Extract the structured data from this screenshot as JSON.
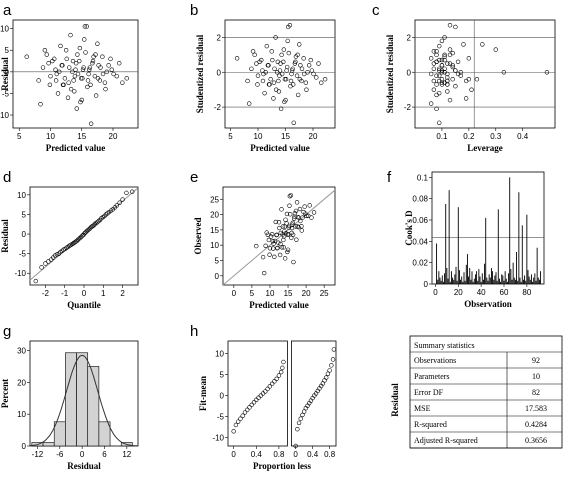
{
  "panel_letters": [
    "a",
    "b",
    "c",
    "d",
    "e",
    "f",
    "g",
    "h"
  ],
  "chart_data": [
    {
      "id": "a",
      "type": "scatter",
      "xlabel": "Predicted value",
      "ylabel": "Residual",
      "xlim": [
        4,
        24
      ],
      "ylim": [
        -13,
        12
      ],
      "xticks": [
        5,
        10,
        15,
        20
      ],
      "yticks": [
        -10,
        -5,
        0,
        5,
        10
      ],
      "hlines": [
        0
      ],
      "x": [
        6.2,
        8.1,
        8.8,
        9.4,
        9.9,
        10.3,
        10.8,
        11.2,
        11.6,
        11.9,
        12.3,
        12.6,
        12.9,
        13.2,
        13.5,
        13.8,
        14.1,
        14.4,
        14.7,
        15.0,
        15.3,
        15.6,
        15.9,
        16.2,
        16.5,
        16.8,
        17.1,
        17.5,
        17.9,
        18.3,
        18.8,
        19.3,
        20.1,
        21.0,
        22.2,
        8.4,
        9.1,
        10.0,
        10.6,
        11.4,
        12.1,
        13.0,
        13.7,
        14.3,
        14.9,
        15.5,
        16.1,
        16.7,
        17.3,
        18.0,
        18.7,
        19.6,
        20.6,
        9.7,
        11.0,
        12.5,
        13.9,
        15.2,
        16.4,
        17.7,
        19.0,
        12.8,
        14.6,
        16.0,
        17.2,
        15.8,
        13.3,
        11.8,
        10.9,
        14.0,
        15.1,
        16.9,
        18.4,
        12.0,
        13.6,
        14.8,
        16.3,
        17.6,
        19.8,
        21.5,
        15.4,
        14.2
      ],
      "y": [
        3.5,
        -2.0,
        1.0,
        4.0,
        -3.0,
        2.5,
        0.5,
        -5.0,
        6.0,
        1.5,
        -1.5,
        3.0,
        -2.5,
        8.5,
        0.0,
        -4.5,
        2.0,
        -0.5,
        5.5,
        -6.5,
        1.0,
        4.5,
        -3.5,
        0.5,
        -12.0,
        2.5,
        -1.0,
        6.5,
        -2.0,
        3.5,
        -4.0,
        1.5,
        -0.5,
        2.0,
        -1.5,
        -7.5,
        5.0,
        -1.0,
        3.0,
        0.0,
        -3.0,
        1.0,
        -2.0,
        4.0,
        -1.5,
        10.5,
        -0.5,
        2.0,
        -5.5,
        1.0,
        -2.5,
        3.0,
        -1.0,
        2.0,
        -0.5,
        5.0,
        -1.0,
        0.5,
        -3.0,
        1.5,
        0.0,
        -6.0,
        2.5,
        -2.0,
        4.0,
        10.5,
        -4.0,
        1.5,
        -2.0,
        0.5,
        -1.5,
        3.5,
        -0.5,
        -3.0,
        2.5,
        -7.0,
        1.0,
        -1.5,
        0.5,
        -2.5,
        7.5,
        -8.5
      ]
    },
    {
      "id": "b",
      "type": "scatter",
      "xlabel": "Predicted value",
      "ylabel": "Studentized residual",
      "xlim": [
        4,
        24
      ],
      "ylim": [
        -3.2,
        3.0
      ],
      "xticks": [
        5,
        10,
        15,
        20
      ],
      "yticks": [
        -2,
        0,
        2
      ],
      "hlines": [
        -2,
        0,
        2
      ],
      "x": [
        6.2,
        8.1,
        8.8,
        9.4,
        9.9,
        10.3,
        10.8,
        11.2,
        11.6,
        11.9,
        12.3,
        12.6,
        12.9,
        13.2,
        13.5,
        13.8,
        14.1,
        14.4,
        14.7,
        15.0,
        15.3,
        15.6,
        15.9,
        16.2,
        16.5,
        16.8,
        17.1,
        17.5,
        17.9,
        18.3,
        18.8,
        19.3,
        20.1,
        21.0,
        22.2,
        8.4,
        9.1,
        10.0,
        10.6,
        11.4,
        12.1,
        13.0,
        13.7,
        14.3,
        14.9,
        15.5,
        16.1,
        16.7,
        17.3,
        18.0,
        18.7,
        19.6,
        20.6,
        9.7,
        11.0,
        12.5,
        13.9,
        15.2,
        16.4,
        17.7,
        19.0,
        12.8,
        14.6,
        16.0,
        17.2,
        15.8,
        13.3,
        11.8,
        10.9,
        14.0,
        15.1,
        16.9,
        18.4,
        12.0,
        13.6,
        14.8,
        16.3,
        17.6,
        19.8,
        21.5,
        15.4,
        14.2
      ],
      "y": [
        0.8,
        -0.5,
        0.2,
        1.0,
        -0.7,
        0.6,
        0.1,
        -1.2,
        1.5,
        0.4,
        -0.4,
        0.7,
        -0.6,
        2.0,
        0.0,
        -1.1,
        0.5,
        -0.1,
        1.3,
        -1.6,
        0.3,
        1.1,
        -0.8,
        0.1,
        -2.9,
        0.6,
        -0.2,
        1.6,
        -0.5,
        0.8,
        -1.0,
        0.4,
        -0.1,
        0.5,
        -0.4,
        -1.8,
        1.2,
        -0.2,
        0.7,
        0.0,
        -0.7,
        0.2,
        -0.5,
        1.0,
        -0.4,
        2.6,
        -0.1,
        0.5,
        -1.3,
        0.2,
        -0.6,
        0.7,
        -0.3,
        0.5,
        -0.1,
        1.2,
        -0.2,
        0.1,
        -0.7,
        0.4,
        0.0,
        -1.5,
        0.6,
        -0.5,
        1.0,
        2.7,
        -1.0,
        0.4,
        -0.5,
        0.1,
        -0.4,
        0.9,
        -0.1,
        -0.7,
        0.6,
        -1.7,
        0.2,
        -0.4,
        0.1,
        -0.6,
        1.8,
        -2.1
      ]
    },
    {
      "id": "c",
      "type": "scatter",
      "xlabel": "Leverage",
      "ylabel": "Studentized residual",
      "xlim": [
        0.0,
        0.52
      ],
      "ylim": [
        -3.2,
        3.0
      ],
      "xticks": [
        0.1,
        0.2,
        0.3,
        0.4
      ],
      "yticks": [
        -2,
        0,
        2
      ],
      "hlines": [
        -2,
        0,
        2
      ],
      "vlines": [
        0.22
      ],
      "x": [
        0.06,
        0.07,
        0.07,
        0.08,
        0.08,
        0.08,
        0.09,
        0.09,
        0.09,
        0.1,
        0.1,
        0.1,
        0.11,
        0.11,
        0.11,
        0.12,
        0.12,
        0.12,
        0.13,
        0.13,
        0.14,
        0.14,
        0.15,
        0.15,
        0.16,
        0.17,
        0.18,
        0.19,
        0.2,
        0.21,
        0.06,
        0.07,
        0.08,
        0.09,
        0.1,
        0.1,
        0.11,
        0.12,
        0.13,
        0.14,
        0.15,
        0.16,
        0.07,
        0.08,
        0.09,
        0.1,
        0.11,
        0.12,
        0.13,
        0.06,
        0.08,
        0.09,
        0.1,
        0.12,
        0.14,
        0.17,
        0.19,
        0.08,
        0.09,
        0.11,
        0.13,
        0.07,
        0.1,
        0.12,
        0.15,
        0.2,
        0.09,
        0.11,
        0.25,
        0.3,
        0.33,
        0.49,
        0.23,
        0.08,
        0.1,
        0.12
      ],
      "y": [
        0.8,
        -0.5,
        0.2,
        1.0,
        -0.7,
        0.6,
        0.1,
        -1.2,
        1.5,
        0.4,
        -0.4,
        0.7,
        -0.6,
        2.0,
        0.0,
        -1.1,
        0.5,
        -0.1,
        1.3,
        -1.6,
        0.3,
        1.1,
        -0.8,
        0.1,
        0.6,
        -0.2,
        1.6,
        -0.5,
        0.8,
        -1.0,
        -1.8,
        1.2,
        -0.2,
        0.7,
        0.0,
        -0.7,
        0.2,
        -0.5,
        1.0,
        -0.4,
        2.6,
        -0.1,
        0.5,
        -1.3,
        0.2,
        -0.6,
        0.7,
        -0.3,
        0.5,
        -0.1,
        1.2,
        -0.2,
        0.1,
        -0.7,
        0.4,
        0.0,
        -1.5,
        0.6,
        -0.5,
        1.0,
        2.7,
        -1.0,
        0.4,
        -0.5,
        0.1,
        -0.4,
        -2.9,
        0.9,
        1.6,
        1.3,
        0.0,
        0.0,
        -0.4,
        -2.1,
        1.8,
        -0.7
      ]
    },
    {
      "id": "d",
      "type": "scatter",
      "xlabel": "Quantile",
      "ylabel": "Residual",
      "xlim": [
        -2.8,
        2.8
      ],
      "ylim": [
        -13,
        12
      ],
      "xticks": [
        -2,
        -1,
        0,
        1,
        2
      ],
      "yticks": [
        -10,
        -5,
        0,
        5,
        10
      ],
      "refline": {
        "slope": 4.2,
        "intercept": 0
      },
      "x": [
        -2.5,
        -2.2,
        -2.0,
        -1.85,
        -1.7,
        -1.6,
        -1.5,
        -1.4,
        -1.3,
        -1.22,
        -1.14,
        -1.06,
        -0.98,
        -0.9,
        -0.83,
        -0.76,
        -0.69,
        -0.62,
        -0.56,
        -0.5,
        -0.44,
        -0.38,
        -0.32,
        -0.26,
        -0.2,
        -0.14,
        -0.08,
        -0.03,
        0.03,
        0.08,
        0.14,
        0.2,
        0.26,
        0.32,
        0.38,
        0.44,
        0.5,
        0.56,
        0.62,
        0.69,
        0.76,
        0.83,
        0.9,
        0.98,
        1.06,
        1.14,
        1.22,
        1.3,
        1.4,
        1.5,
        1.6,
        1.7,
        1.85,
        2.0,
        2.2,
        2.5
      ],
      "y": [
        -12.0,
        -8.5,
        -7.5,
        -7.0,
        -6.5,
        -6.0,
        -5.5,
        -5.2,
        -5.0,
        -4.6,
        -4.3,
        -4.0,
        -3.8,
        -3.5,
        -3.3,
        -3.0,
        -2.8,
        -2.6,
        -2.4,
        -2.2,
        -2.0,
        -1.8,
        -1.5,
        -1.2,
        -1.0,
        -0.7,
        -0.4,
        -0.2,
        0.2,
        0.4,
        0.7,
        1.0,
        1.2,
        1.5,
        1.8,
        2.0,
        2.2,
        2.5,
        2.8,
        3.0,
        3.3,
        3.6,
        4.0,
        4.3,
        4.6,
        5.0,
        5.3,
        5.6,
        6.0,
        6.3,
        6.8,
        7.3,
        8.0,
        8.8,
        10.5,
        10.8
      ]
    },
    {
      "id": "e",
      "type": "scatter",
      "xlabel": "Predicted value",
      "ylabel": "Observed",
      "xlim": [
        -3,
        28
      ],
      "ylim": [
        -3,
        29
      ],
      "xticks": [
        0,
        5,
        10,
        15,
        20,
        25
      ],
      "yticks": [
        0,
        5,
        10,
        15,
        20,
        25
      ],
      "refline": {
        "slope": 1,
        "intercept": 0
      },
      "x": [
        6.2,
        8.1,
        8.8,
        9.4,
        9.9,
        10.3,
        10.8,
        11.2,
        11.6,
        11.9,
        12.3,
        12.6,
        12.9,
        13.2,
        13.5,
        13.8,
        14.1,
        14.4,
        14.7,
        15.0,
        15.3,
        15.6,
        15.9,
        16.2,
        16.5,
        16.8,
        17.1,
        17.5,
        17.9,
        18.3,
        18.8,
        19.3,
        20.1,
        21.0,
        22.2,
        8.4,
        9.1,
        10.0,
        10.6,
        11.4,
        12.1,
        13.0,
        13.7,
        14.3,
        14.9,
        15.5,
        16.1,
        16.7,
        17.3,
        18.0,
        18.7,
        19.6,
        20.6,
        9.7,
        11.0,
        12.5,
        13.9,
        15.2,
        16.4,
        17.7,
        19.0,
        12.8,
        14.6,
        16.0,
        17.2,
        15.8,
        13.3,
        11.8,
        10.9,
        14.0,
        15.1,
        16.9,
        18.4,
        12.0,
        13.6,
        14.8,
        16.3,
        17.6,
        19.8,
        21.5,
        15.4,
        14.2
      ],
      "y": [
        9.7,
        6.1,
        9.8,
        13.4,
        6.9,
        12.8,
        11.3,
        6.2,
        17.6,
        13.4,
        10.8,
        15.6,
        10.4,
        21.7,
        13.5,
        9.3,
        16.1,
        13.9,
        20.2,
        8.5,
        16.3,
        20.1,
        12.4,
        16.7,
        4.5,
        19.3,
        16.1,
        24.0,
        15.9,
        21.8,
        14.8,
        20.8,
        19.6,
        23.0,
        20.7,
        0.9,
        14.1,
        9.0,
        13.6,
        11.4,
        9.1,
        14.0,
        11.7,
        18.3,
        13.4,
        26.0,
        15.6,
        18.7,
        11.8,
        19.0,
        16.2,
        22.6,
        19.6,
        11.7,
        10.5,
        17.5,
        12.9,
        15.7,
        13.4,
        19.2,
        19.0,
        6.8,
        17.1,
        14.0,
        21.2,
        26.3,
        9.3,
        13.3,
        8.9,
        14.5,
        13.6,
        20.4,
        17.9,
        9.0,
        16.1,
        7.8,
        17.3,
        16.1,
        20.3,
        19.0,
        22.9,
        5.7
      ]
    },
    {
      "id": "f",
      "type": "bar",
      "xlabel": "Observation",
      "ylabel": "Cook's D",
      "xlim": [
        -3,
        95
      ],
      "ylim": [
        0,
        0.105
      ],
      "xticks": [
        0,
        20,
        40,
        60,
        80
      ],
      "yticks": [
        0.0,
        0.02,
        0.04,
        0.06,
        0.08,
        0.1
      ],
      "hlines": [
        0.0435
      ],
      "values": [
        0.038,
        0.004,
        0.012,
        0.006,
        0.003,
        0.008,
        0.002,
        0.01,
        0.075,
        0.015,
        0.005,
        0.088,
        0.002,
        0.012,
        0.006,
        0.004,
        0.009,
        0.016,
        0.003,
        0.072,
        0.013,
        0.004,
        0.007,
        0.002,
        0.011,
        0.003,
        0.018,
        0.028,
        0.007,
        0.015,
        0.004,
        0.012,
        0.002,
        0.005,
        0.009,
        0.012,
        0.003,
        0.014,
        0.007,
        0.002,
        0.01,
        0.004,
        0.019,
        0.062,
        0.006,
        0.003,
        0.009,
        0.006,
        0.015,
        0.012,
        0.004,
        0.008,
        0.011,
        0.003,
        0.07,
        0.005,
        0.002,
        0.009,
        0.008,
        0.003,
        0.012,
        0.005,
        0.002,
        0.01,
        0.1,
        0.014,
        0.004,
        0.02,
        0.006,
        0.004,
        0.03,
        0.003,
        0.086,
        0.006,
        0.002,
        0.055,
        0.004,
        0.008,
        0.003,
        0.065,
        0.013,
        0.007,
        0.004,
        0.009,
        0.002,
        0.006,
        0.01,
        0.003,
        0.034,
        0.006,
        0.004,
        0.012
      ]
    },
    {
      "id": "g",
      "type": "bar",
      "xlabel": "Residual",
      "ylabel": "Percent",
      "xlim": [
        -14,
        15
      ],
      "ylim": [
        0,
        33
      ],
      "xticks": [
        -12,
        -6,
        0,
        6,
        12
      ],
      "yticks": [
        0,
        10,
        20,
        30
      ],
      "bin_centers": [
        -12,
        -9,
        -6,
        -3,
        0,
        3,
        6,
        9,
        12
      ],
      "values": [
        1.1,
        1.1,
        7.6,
        29.3,
        29.3,
        25.0,
        7.6,
        0.0,
        1.1
      ],
      "density_curve": true
    },
    {
      "id": "h",
      "type": "scatter",
      "xlabel": "Proportion less",
      "ylabel": "Fit-mean",
      "xlim": [
        -0.1,
        0.95
      ],
      "ylim": [
        -12,
        13
      ],
      "xticks": [
        0.0,
        0.4,
        0.8
      ],
      "yticks": [
        -10,
        -5,
        0,
        5,
        10
      ],
      "series": [
        {
          "x": [
            0.0,
            0.04,
            0.08,
            0.12,
            0.16,
            0.2,
            0.24,
            0.28,
            0.32,
            0.36,
            0.4,
            0.44,
            0.48,
            0.52,
            0.56,
            0.6,
            0.64,
            0.68,
            0.72,
            0.76,
            0.8,
            0.84,
            0.86,
            0.88
          ],
          "y": [
            -8.5,
            -7.0,
            -6.2,
            -5.5,
            -4.8,
            -4.0,
            -3.4,
            -2.8,
            -2.2,
            -1.6,
            -1.0,
            -0.5,
            0.0,
            0.5,
            1.0,
            1.6,
            2.2,
            2.8,
            3.4,
            4.0,
            4.8,
            5.6,
            6.6,
            8.0
          ]
        },
        {
          "x": [
            0.0,
            0.04,
            0.08,
            0.12,
            0.16,
            0.2,
            0.24,
            0.28,
            0.32,
            0.36,
            0.4,
            0.44,
            0.48,
            0.52,
            0.56,
            0.6,
            0.64,
            0.68,
            0.72,
            0.76,
            0.8,
            0.84,
            0.88,
            0.9
          ],
          "y": [
            -12.0,
            -8.0,
            -6.5,
            -5.5,
            -4.6,
            -3.8,
            -3.0,
            -2.4,
            -1.8,
            -1.2,
            -0.6,
            0.0,
            0.5,
            1.1,
            1.7,
            2.3,
            2.9,
            3.6,
            4.3,
            5.2,
            6.0,
            7.2,
            8.6,
            11.0
          ]
        }
      ]
    }
  ],
  "summary": {
    "title": "Summary statistics",
    "side_label": "Residual",
    "rows": [
      {
        "label": "Observations",
        "value": "92"
      },
      {
        "label": "Parameters",
        "value": "10"
      },
      {
        "label": "Error DF",
        "value": "82"
      },
      {
        "label": "MSE",
        "value": "17.583"
      },
      {
        "label": "R-squared",
        "value": "0.4284"
      },
      {
        "label": "Adjusted R-squared",
        "value": "0.3656"
      }
    ]
  }
}
